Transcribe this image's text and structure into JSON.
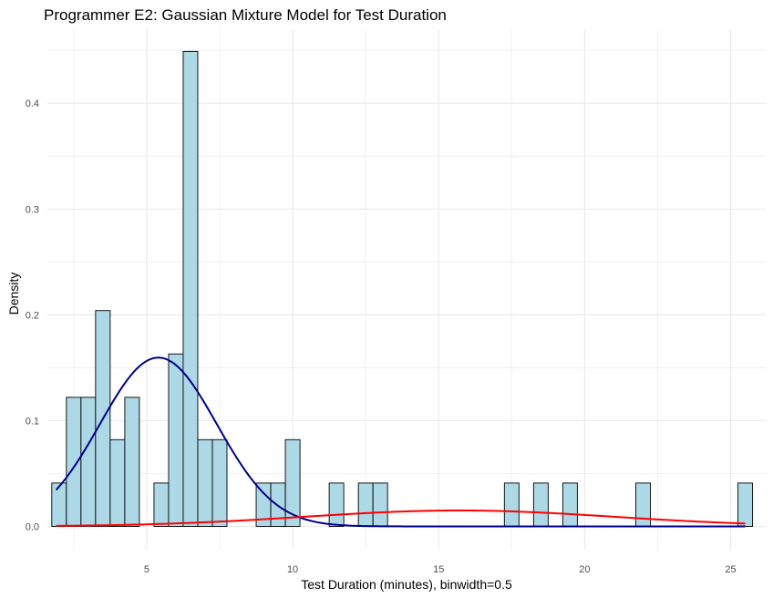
{
  "chart_data": {
    "type": "bar",
    "title": "Programmer E2: Gaussian Mixture Model for Test Duration",
    "xlabel": "Test Duration (minutes), binwidth=0.5",
    "ylabel": "Density",
    "binwidth": 0.5,
    "xlim": [
      1.6,
      26.2
    ],
    "ylim": [
      -0.022,
      0.47
    ],
    "x_ticks": [
      5,
      10,
      15,
      20,
      25
    ],
    "y_ticks": [
      0.0,
      0.1,
      0.2,
      0.3,
      0.4
    ],
    "y_tick_labels": [
      "0.0",
      "0.1",
      "0.2",
      "0.3",
      "0.4"
    ],
    "grid": true,
    "legend": "none",
    "bars": [
      {
        "start": 1.75,
        "end": 2.25,
        "density": 0.041
      },
      {
        "start": 2.25,
        "end": 2.75,
        "density": 0.122
      },
      {
        "start": 2.75,
        "end": 3.25,
        "density": 0.122
      },
      {
        "start": 3.25,
        "end": 3.75,
        "density": 0.204
      },
      {
        "start": 3.75,
        "end": 4.25,
        "density": 0.082
      },
      {
        "start": 4.25,
        "end": 4.75,
        "density": 0.122
      },
      {
        "start": 5.25,
        "end": 5.75,
        "density": 0.041
      },
      {
        "start": 5.75,
        "end": 6.25,
        "density": 0.163
      },
      {
        "start": 6.25,
        "end": 6.75,
        "density": 0.449
      },
      {
        "start": 6.75,
        "end": 7.25,
        "density": 0.082
      },
      {
        "start": 7.25,
        "end": 7.75,
        "density": 0.082
      },
      {
        "start": 8.75,
        "end": 9.25,
        "density": 0.041
      },
      {
        "start": 9.25,
        "end": 9.75,
        "density": 0.041
      },
      {
        "start": 9.75,
        "end": 10.25,
        "density": 0.082
      },
      {
        "start": 11.25,
        "end": 11.75,
        "density": 0.041
      },
      {
        "start": 12.25,
        "end": 12.75,
        "density": 0.041
      },
      {
        "start": 12.75,
        "end": 13.25,
        "density": 0.041
      },
      {
        "start": 17.25,
        "end": 17.75,
        "density": 0.041
      },
      {
        "start": 18.25,
        "end": 18.75,
        "density": 0.041
      },
      {
        "start": 19.25,
        "end": 19.75,
        "density": 0.041
      },
      {
        "start": 21.75,
        "end": 22.25,
        "density": 0.041
      },
      {
        "start": 25.25,
        "end": 25.75,
        "density": 0.041
      }
    ],
    "curves": [
      {
        "color": "#00008b",
        "weight": 0.8,
        "mean": 5.4,
        "sd": 2.0,
        "x_range": [
          1.9,
          25.5
        ]
      },
      {
        "color": "#ff0000",
        "weight": 0.2,
        "mean": 15.7,
        "sd": 5.3,
        "x_range": [
          1.9,
          25.5
        ]
      }
    ],
    "colors": {
      "bar_fill": "#add8e6",
      "bar_stroke": "#000000",
      "grid": "#ebebeb"
    }
  }
}
